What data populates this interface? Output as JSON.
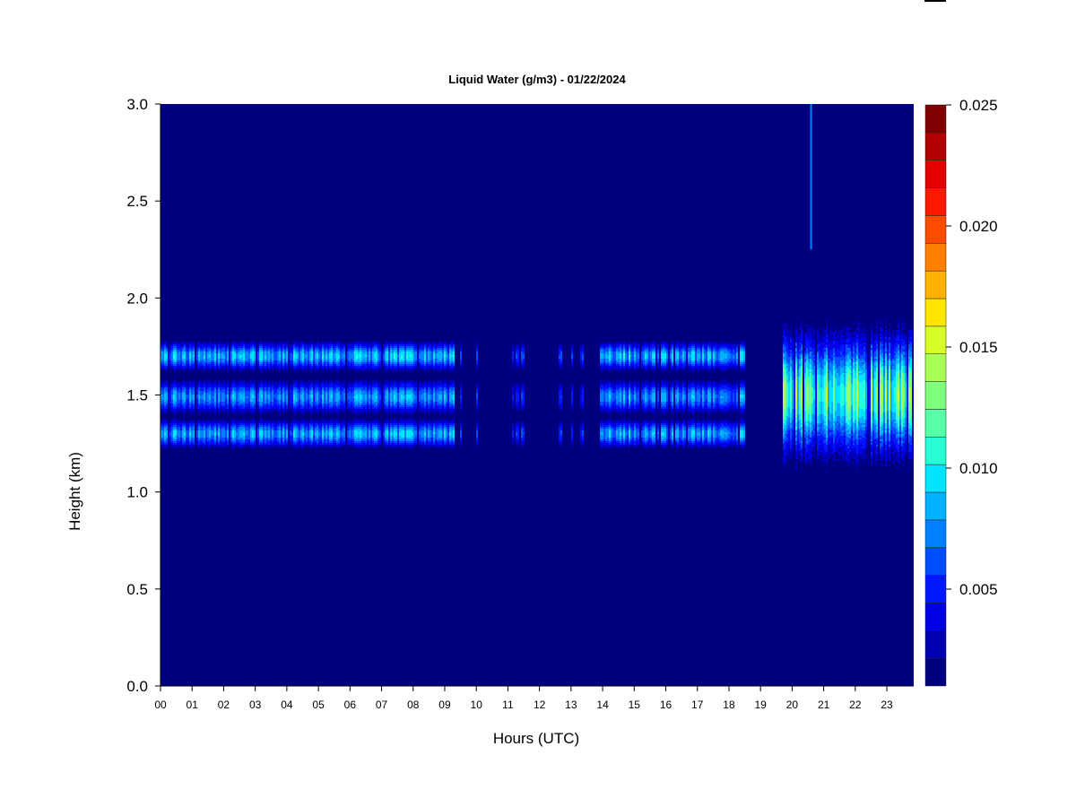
{
  "chart_data": {
    "type": "heatmap",
    "title": "Liquid Water (g/m3) - 01/22/2024",
    "xlabel": "Hours (UTC)",
    "ylabel": "Height (km)",
    "xlim": [
      0,
      23.85
    ],
    "ylim": [
      0,
      3.0
    ],
    "x_ticks": [
      "00",
      "01",
      "02",
      "03",
      "04",
      "05",
      "06",
      "07",
      "08",
      "09",
      "10",
      "11",
      "12",
      "13",
      "14",
      "15",
      "16",
      "17",
      "18",
      "19",
      "20",
      "21",
      "22",
      "23"
    ],
    "y_ticks": [
      "0.0",
      "0.5",
      "1.0",
      "1.5",
      "2.0",
      "2.5",
      "3.0"
    ],
    "colorbar": {
      "min": 0.001,
      "max": 0.025,
      "ticks": [
        "0.005",
        "0.010",
        "0.015",
        "0.020",
        "0.025"
      ],
      "colors": [
        "#00007f",
        "#0000b2",
        "#0000e5",
        "#0018ff",
        "#004cff",
        "#0080ff",
        "#00b2ff",
        "#00e5ff",
        "#28ffd6",
        "#57ffa7",
        "#80ff7f",
        "#a7ff57",
        "#d6ff28",
        "#ffe500",
        "#ffb200",
        "#ff8000",
        "#ff4c00",
        "#ff1800",
        "#e50000",
        "#b20000",
        "#7f0000"
      ]
    },
    "background_value": 0.001,
    "cloud_layers": [
      {
        "name": "upper",
        "height_km": 1.7,
        "halfwidth_km": 0.065
      },
      {
        "name": "middle",
        "height_km": 1.49,
        "halfwidth_km": 0.075
      },
      {
        "name": "lower",
        "height_km": 1.3,
        "halfwidth_km": 0.065
      }
    ],
    "segments": [
      {
        "x_start": 0.0,
        "x_end": 9.3,
        "peak_value": 0.0105
      },
      {
        "x_start": 9.3,
        "x_end": 10.3,
        "peak_value": 0.0085
      },
      {
        "x_start": 10.9,
        "x_end": 11.5,
        "peak_value": 0.0075
      },
      {
        "x_start": 12.6,
        "x_end": 13.4,
        "peak_value": 0.007
      },
      {
        "x_start": 13.9,
        "x_end": 18.5,
        "peak_value": 0.0105
      },
      {
        "x_start": 19.7,
        "x_end": 23.85,
        "peak_value": 0.0145
      }
    ],
    "features": [
      {
        "type": "vertical-streak",
        "x": 20.6,
        "y_start": 2.25,
        "y_end": 3.0,
        "value": 0.007
      }
    ]
  }
}
